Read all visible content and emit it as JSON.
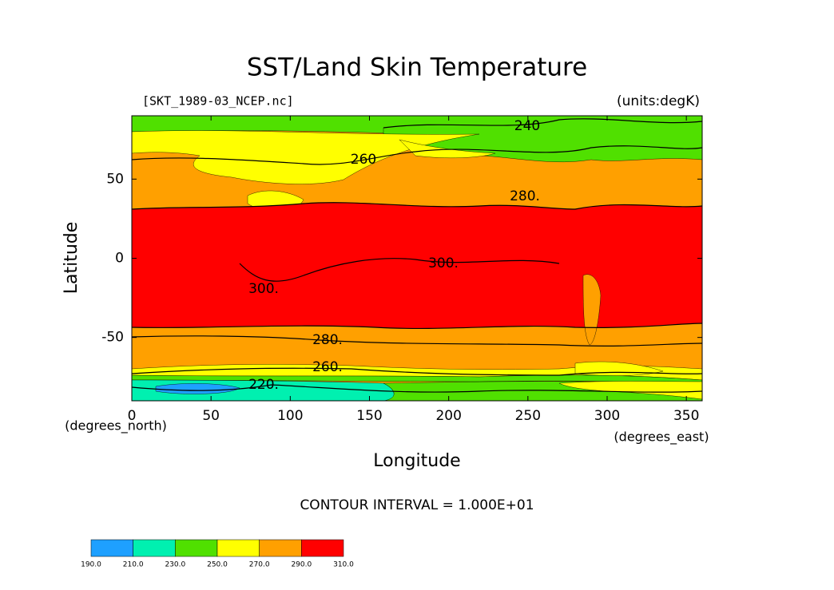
{
  "chart_data": {
    "type": "contour-map",
    "title": "SST/Land Skin Temperature",
    "subtitle_left": "[SKT_1989-03_NCEP.nc]",
    "subtitle_right": "(units:degK)",
    "x_label": "Longitude",
    "y_label": "Latitude",
    "x_units": "(degrees_east)",
    "y_units": "(degrees_north)",
    "xlim": [
      0,
      360
    ],
    "ylim": [
      -90,
      90
    ],
    "xticks": [
      0,
      50,
      100,
      150,
      200,
      250,
      300,
      350
    ],
    "yticks": [
      -50,
      0,
      50
    ],
    "contour_interval_text": "CONTOUR INTERVAL = 1.000E+01",
    "contour_labels": [
      "240",
      "260",
      "280.",
      "300.",
      "300.",
      "280.",
      "260.",
      "220."
    ],
    "levels": [
      {
        "value": 190,
        "label": "190.0"
      },
      {
        "value": 210,
        "label": "210.0"
      },
      {
        "value": 230,
        "label": "230.0"
      },
      {
        "value": 250,
        "label": "250.0"
      },
      {
        "value": 270,
        "label": "270.0"
      },
      {
        "value": 290,
        "label": "290.0"
      },
      {
        "value": 310,
        "label": "310.0"
      }
    ],
    "colors": [
      "#1ea0ff",
      "#00f0b0",
      "#50e000",
      "#ffff00",
      "#ffa000",
      "#ff0000"
    ]
  }
}
